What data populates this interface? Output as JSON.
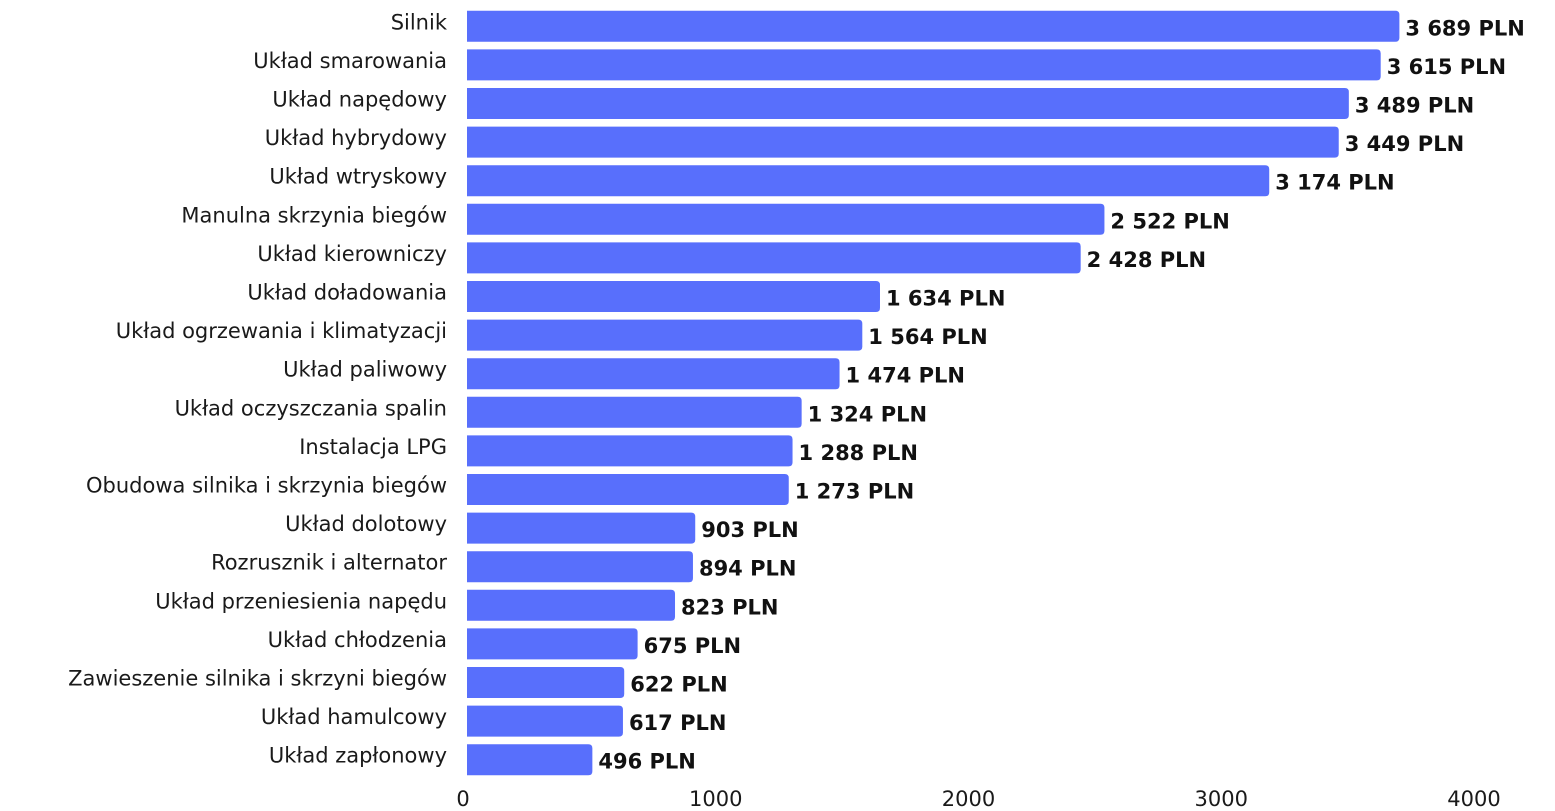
{
  "chart_data": {
    "type": "hbar",
    "color": "#586ffc",
    "categories": [
      "Silnik",
      "Układ smarowania",
      "Układ napędowy",
      "Układ hybrydowy",
      "Układ wtryskowy",
      "Manulna skrzynia biegów",
      "Układ kierowniczy",
      "Układ doładowania",
      "Układ ogrzewania i klimatyzacji",
      "Układ paliwowy",
      "Układ oczyszczania spalin",
      "Instalacja LPG",
      "Obudowa silnika i skrzynia biegów",
      "Układ dolotowy",
      "Rozrusznik i alternator",
      "Układ przeniesienia napędu",
      "Układ chłodzenia",
      "Zawieszenie silnika i skrzyni biegów",
      "Układ hamulcowy",
      "Układ zapłonowy"
    ],
    "values": [
      3689,
      3615,
      3489,
      3449,
      3174,
      2522,
      2428,
      1634,
      1564,
      1474,
      1324,
      1288,
      1273,
      903,
      894,
      823,
      675,
      622,
      617,
      496
    ],
    "value_labels": [
      "3 689 PLN",
      "3 615 PLN",
      "3 489 PLN",
      "3 449 PLN",
      "3 174 PLN",
      "2 522 PLN",
      "2 428 PLN",
      "1 634 PLN",
      "1 564 PLN",
      "1 474 PLN",
      "1 324 PLN",
      "1 288 PLN",
      "1 273 PLN",
      "903 PLN",
      "894 PLN",
      "823 PLN",
      "675 PLN",
      "622 PLN",
      "617 PLN",
      "496 PLN"
    ],
    "xlim": [
      0,
      4000
    ],
    "xticks": [
      0,
      1000,
      2000,
      3000,
      4000
    ]
  }
}
